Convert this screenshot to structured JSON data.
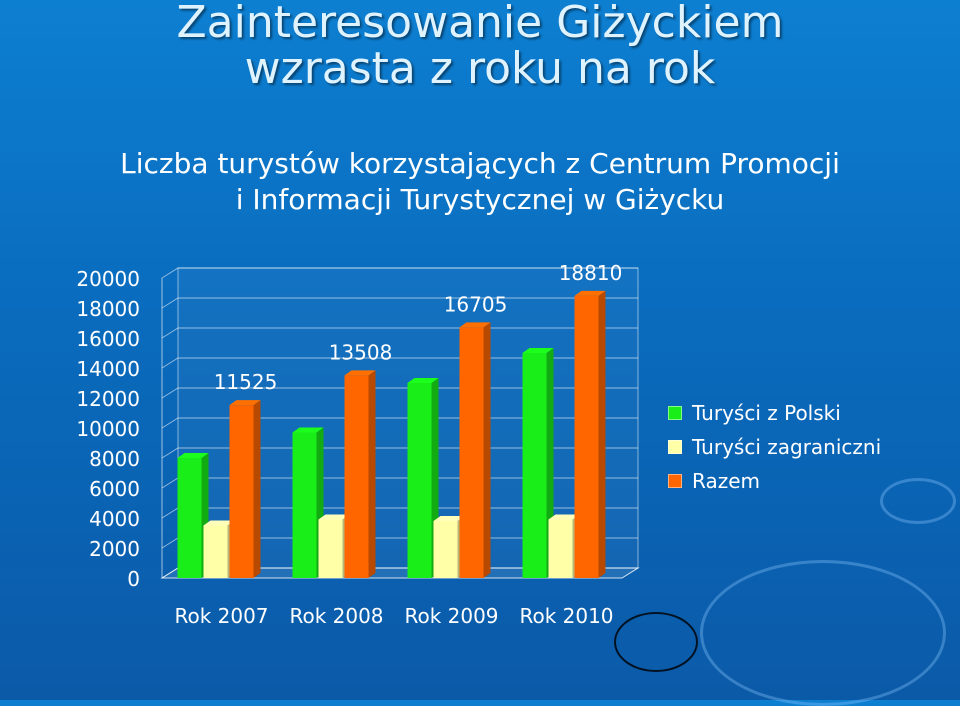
{
  "slide": {
    "title_line1": "Zainteresowanie Giżyckiem",
    "title_line2": "wzrasta z roku na rok",
    "subtitle_line1": "Liczba turystów korzystających z Centrum Promocji",
    "subtitle_line2": "i Informacji Turystycznej w Giżycku"
  },
  "colors": {
    "background": "#0a6bbd",
    "domestic": "#19ee19",
    "foreign": "#ffffa8",
    "total": "#ff6600"
  },
  "chart_data": {
    "type": "bar",
    "categories": [
      "Rok 2007",
      "Rok 2008",
      "Rok 2009",
      "Rok 2010"
    ],
    "series": [
      {
        "name": "Turyści z Polski",
        "values": [
          8000,
          9700,
          13000,
          15000
        ],
        "color": "#19ee19"
      },
      {
        "name": "Turyści zagraniczni",
        "values": [
          3500,
          3900,
          3800,
          3900
        ],
        "color": "#ffffa8"
      },
      {
        "name": "Razem",
        "values": [
          11525,
          13508,
          16705,
          18810
        ],
        "color": "#ff6600",
        "data_labels": [
          "11525",
          "13508",
          "16705",
          "18810"
        ]
      }
    ],
    "ylim": [
      0,
      20000
    ],
    "yticks": [
      "0",
      "2000",
      "4000",
      "6000",
      "8000",
      "10000",
      "12000",
      "14000",
      "16000",
      "18000",
      "20000"
    ],
    "grid": true,
    "legend_position": "right",
    "style": "3d-column"
  }
}
